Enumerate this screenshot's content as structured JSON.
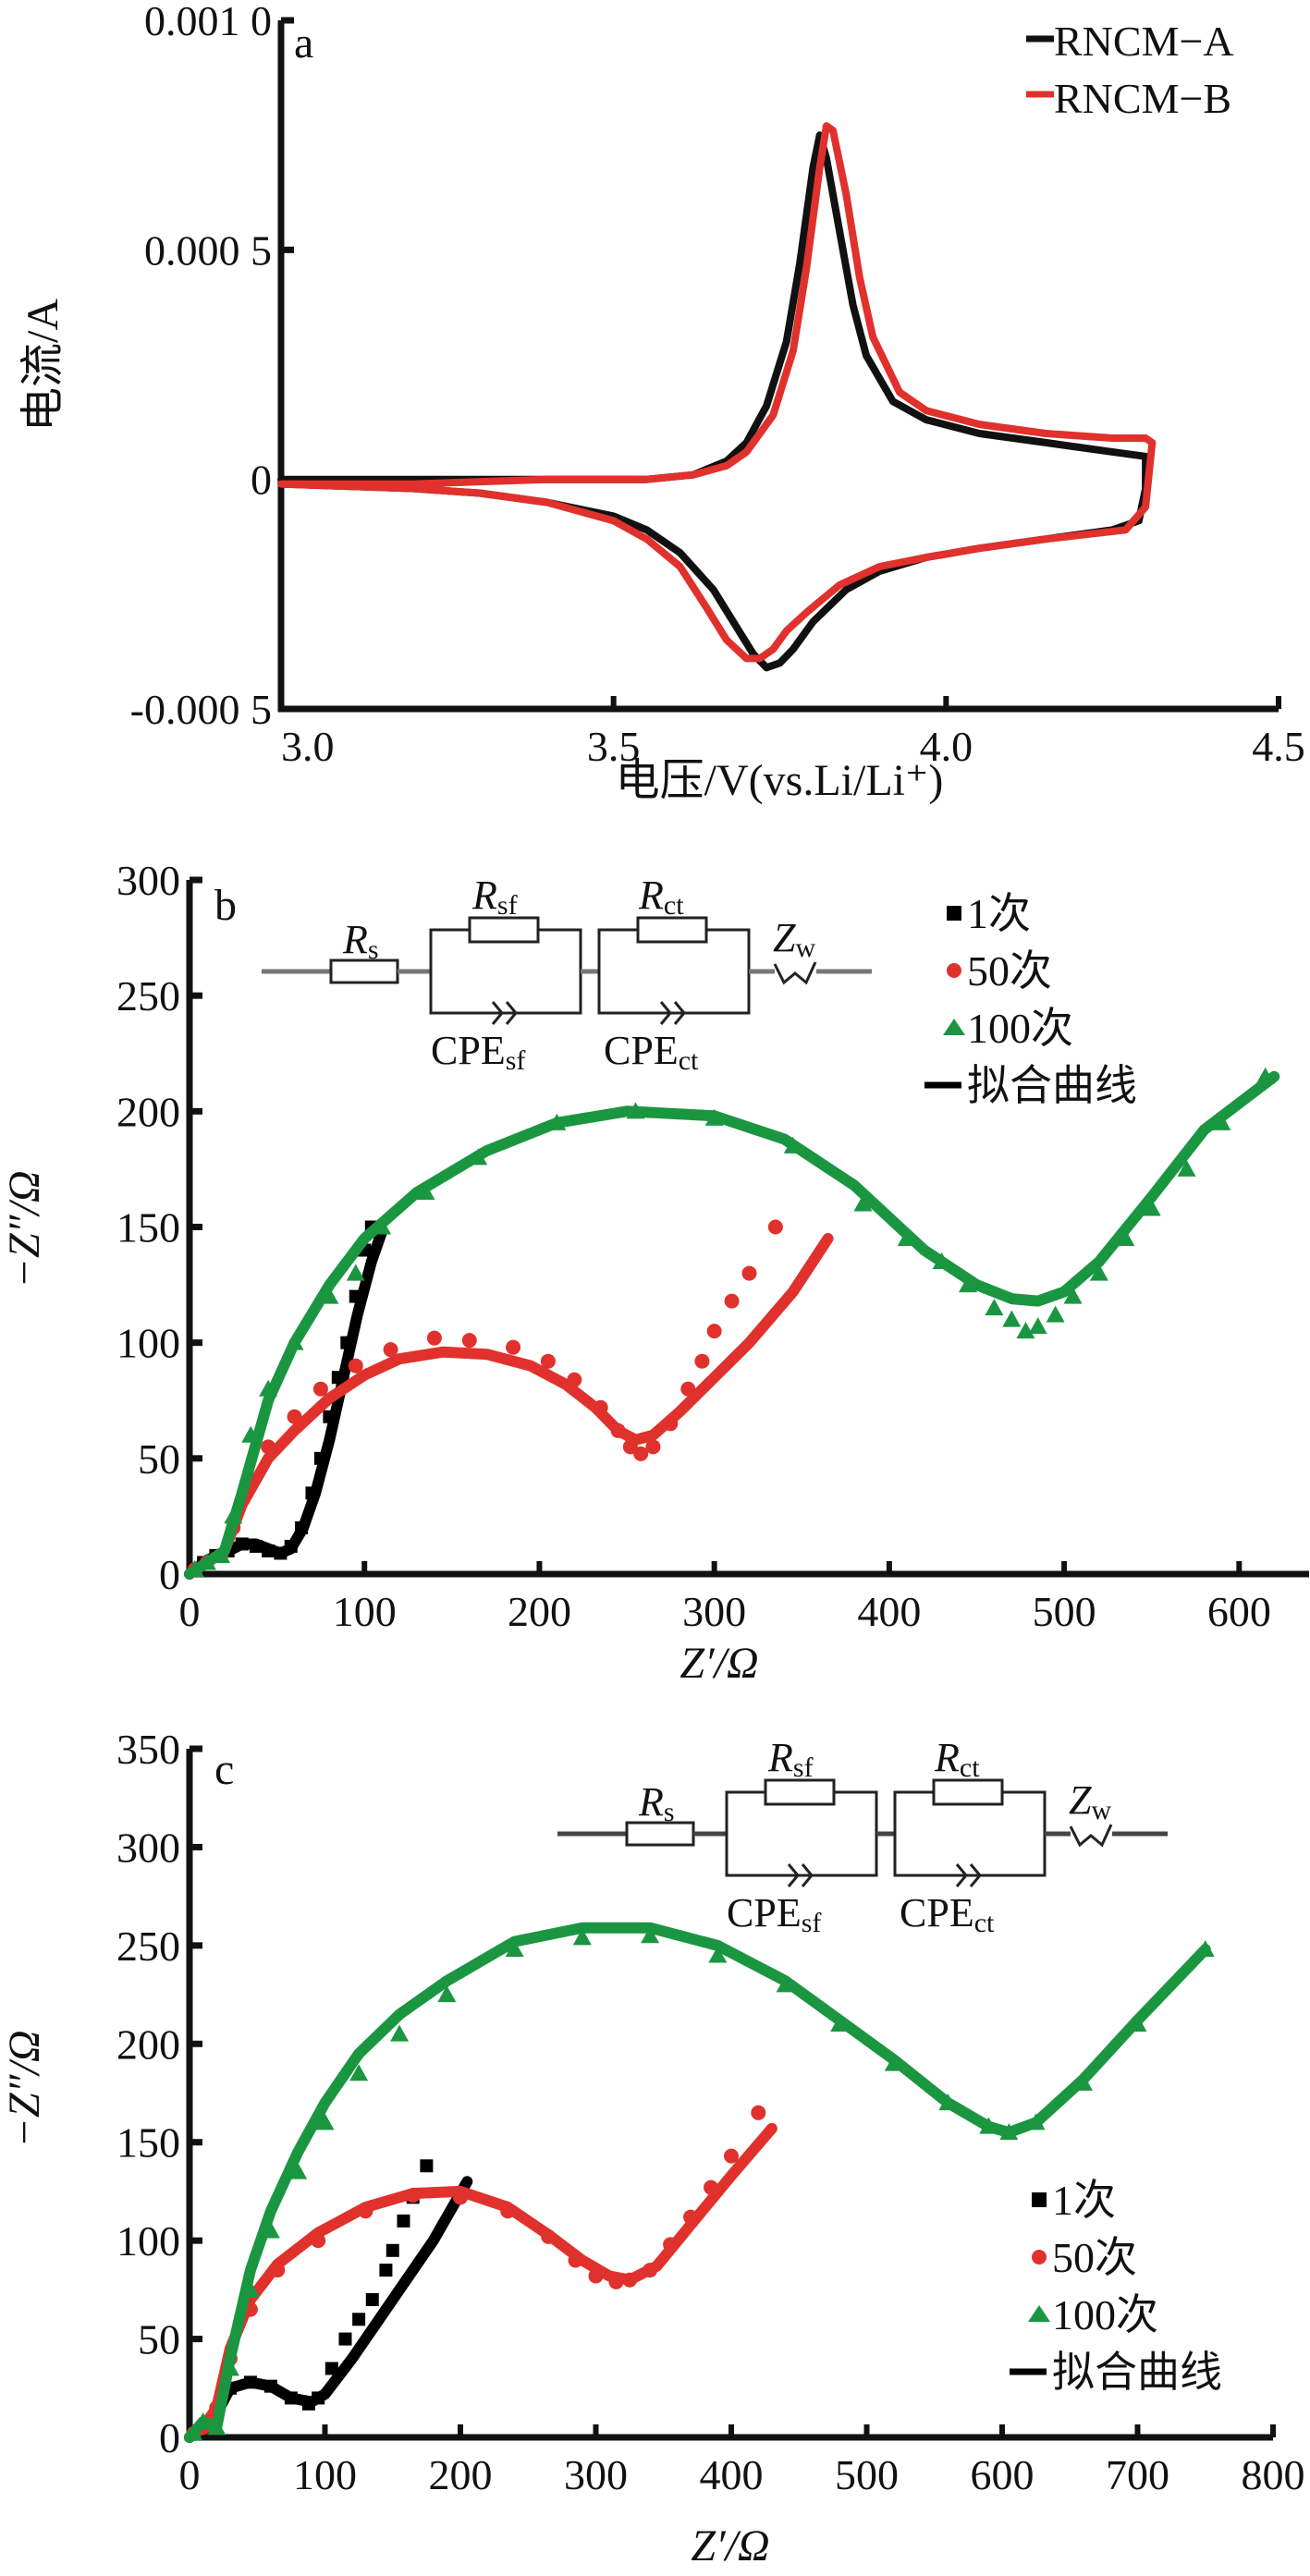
{
  "chart_data": [
    {
      "id": "a",
      "type": "line",
      "panel_label": "a",
      "xlabel": "电压/V(vs.Li/Li⁺)",
      "ylabel": "电流/A",
      "xlim": [
        3.0,
        4.5
      ],
      "ylim": [
        -0.0005,
        0.001
      ],
      "xticks": [
        3.0,
        3.5,
        4.0,
        4.5
      ],
      "xtick_labels": [
        "3.0",
        "3.5",
        "4.0",
        "4.5"
      ],
      "yticks": [
        -0.0005,
        0,
        0.0005,
        0.001
      ],
      "ytick_labels": [
        "-0.000 5",
        "0",
        "0.000 5",
        "0.001 0"
      ],
      "legend_position": "top-right",
      "series": [
        {
          "name": "RNCM−A",
          "color": "#111111",
          "x": [
            3.0,
            3.2,
            3.4,
            3.55,
            3.62,
            3.67,
            3.7,
            3.73,
            3.76,
            3.78,
            3.8,
            3.81,
            3.82,
            3.84,
            3.86,
            3.88,
            3.92,
            3.97,
            4.05,
            4.15,
            4.25,
            4.3,
            4.3,
            4.29,
            4.25,
            4.15,
            4.05,
            3.97,
            3.9,
            3.85,
            3.8,
            3.77,
            3.75,
            3.73,
            3.71,
            3.68,
            3.65,
            3.6,
            3.55,
            3.5,
            3.4,
            3.3,
            3.2,
            3.0
          ],
          "y": [
            0.0,
            0.0,
            0.0,
            0.0,
            1e-05,
            4e-05,
            8e-05,
            0.00016,
            0.0003,
            0.00047,
            0.00068,
            0.00075,
            0.0007,
            0.00054,
            0.00038,
            0.00027,
            0.00017,
            0.00013,
            0.0001,
            8e-05,
            6e-05,
            5e-05,
            -2e-05,
            -9e-05,
            -0.00011,
            -0.00013,
            -0.00015,
            -0.00017,
            -0.0002,
            -0.00024,
            -0.00031,
            -0.00037,
            -0.0004,
            -0.00041,
            -0.00038,
            -0.00031,
            -0.00024,
            -0.00016,
            -0.00011,
            -8e-05,
            -5e-05,
            -3e-05,
            -2e-05,
            -1e-05
          ]
        },
        {
          "name": "RNCM−B",
          "color": "#e0312c",
          "x": [
            3.0,
            3.2,
            3.4,
            3.55,
            3.62,
            3.67,
            3.7,
            3.74,
            3.77,
            3.79,
            3.81,
            3.82,
            3.83,
            3.85,
            3.87,
            3.89,
            3.93,
            3.97,
            4.05,
            4.15,
            4.25,
            4.3,
            4.31,
            4.3,
            4.27,
            4.15,
            4.05,
            3.97,
            3.9,
            3.84,
            3.79,
            3.76,
            3.74,
            3.72,
            3.7,
            3.67,
            3.64,
            3.6,
            3.55,
            3.5,
            3.4,
            3.3,
            3.2,
            3.0
          ],
          "y": [
            -1e-05,
            -1e-05,
            0.0,
            0.0,
            1e-05,
            3e-05,
            6e-05,
            0.00014,
            0.00028,
            0.00046,
            0.00068,
            0.00077,
            0.00076,
            0.00062,
            0.00044,
            0.00031,
            0.00019,
            0.00015,
            0.00012,
            0.0001,
            9e-05,
            9e-05,
            8e-05,
            -6e-05,
            -0.00011,
            -0.00013,
            -0.00015,
            -0.00017,
            -0.00019,
            -0.00023,
            -0.00029,
            -0.00033,
            -0.00037,
            -0.00039,
            -0.00039,
            -0.00035,
            -0.00028,
            -0.00019,
            -0.00013,
            -9e-05,
            -5e-05,
            -3e-05,
            -2e-05,
            -1e-05
          ]
        }
      ]
    },
    {
      "id": "b",
      "type": "scatter",
      "panel_label": "b",
      "xlabel": "Z′/Ω",
      "ylabel": "−Z″/Ω",
      "xlim": [
        0,
        640
      ],
      "ylim": [
        0,
        300
      ],
      "xticks": [
        0,
        100,
        200,
        300,
        400,
        500,
        600
      ],
      "xtick_labels": [
        "0",
        "100",
        "200",
        "300",
        "400",
        "500",
        "600"
      ],
      "yticks": [
        0,
        50,
        100,
        150,
        200,
        250,
        300
      ],
      "ytick_labels": [
        "0",
        "50",
        "100",
        "150",
        "200",
        "250",
        "300"
      ],
      "legend_position": "top-right",
      "legend": [
        {
          "label": "1次",
          "marker": "square",
          "color": "#000000"
        },
        {
          "label": "50次",
          "marker": "circle",
          "color": "#e0312c"
        },
        {
          "label": "100次",
          "marker": "triangle",
          "color": "#1a9641"
        },
        {
          "label": "拟合曲线",
          "marker": "line",
          "color": "#000000"
        }
      ],
      "circuit": {
        "labels": [
          "R",
          "s",
          "R",
          "sf",
          "R",
          "ct",
          "Z",
          "w",
          "CPE",
          "sf",
          "CPE",
          "ct"
        ]
      },
      "series": [
        {
          "name": "1次",
          "color": "#000000",
          "marker": "square",
          "points_x": [
            2,
            8,
            15,
            22,
            30,
            38,
            45,
            52,
            58,
            64,
            70,
            75,
            80,
            85,
            90,
            95,
            100,
            104
          ],
          "points_y": [
            2,
            5,
            8,
            10,
            13,
            12,
            10,
            9,
            12,
            20,
            35,
            50,
            68,
            85,
            100,
            120,
            140,
            150
          ],
          "fit_x": [
            0,
            10,
            20,
            30,
            38,
            45,
            52,
            58,
            65,
            72,
            80,
            88,
            96,
            104,
            110
          ],
          "fit_y": [
            0,
            6,
            9,
            13,
            13,
            11,
            9,
            11,
            20,
            35,
            58,
            85,
            112,
            135,
            148
          ]
        },
        {
          "name": "50次",
          "color": "#e0312c",
          "marker": "circle",
          "points_x": [
            3,
            10,
            18,
            25,
            35,
            45,
            60,
            75,
            95,
            115,
            140,
            160,
            185,
            205,
            220,
            235,
            245,
            252,
            258,
            265,
            275,
            285,
            293,
            300,
            310,
            320,
            335
          ],
          "points_y": [
            2,
            5,
            8,
            20,
            40,
            55,
            68,
            80,
            90,
            97,
            102,
            101,
            98,
            92,
            84,
            72,
            62,
            55,
            52,
            55,
            65,
            80,
            92,
            105,
            118,
            130,
            150
          ],
          "fit_x": [
            0,
            10,
            20,
            30,
            45,
            60,
            80,
            100,
            120,
            145,
            170,
            195,
            215,
            232,
            245,
            255,
            265,
            280,
            300,
            320,
            345,
            365
          ],
          "fit_y": [
            0,
            5,
            10,
            30,
            50,
            62,
            76,
            86,
            93,
            96,
            95,
            90,
            82,
            72,
            62,
            58,
            60,
            70,
            85,
            100,
            122,
            145
          ]
        },
        {
          "name": "100次",
          "color": "#1a9641",
          "marker": "triangle",
          "points_x": [
            3,
            10,
            18,
            25,
            35,
            45,
            60,
            80,
            95,
            110,
            135,
            165,
            210,
            255,
            300,
            345,
            385,
            410,
            430,
            445,
            460,
            470,
            478,
            485,
            495,
            505,
            520,
            535,
            550,
            570,
            590,
            615
          ],
          "points_y": [
            2,
            5,
            8,
            25,
            60,
            80,
            100,
            120,
            130,
            150,
            165,
            180,
            195,
            200,
            197,
            185,
            160,
            145,
            135,
            125,
            115,
            110,
            105,
            107,
            112,
            120,
            130,
            145,
            158,
            175,
            195,
            215
          ],
          "fit_x": [
            0,
            10,
            20,
            30,
            45,
            60,
            80,
            100,
            130,
            170,
            210,
            250,
            300,
            340,
            380,
            420,
            450,
            470,
            485,
            500,
            520,
            550,
            580,
            620
          ],
          "fit_y": [
            0,
            5,
            10,
            35,
            75,
            100,
            125,
            145,
            165,
            183,
            195,
            200,
            198,
            188,
            168,
            140,
            125,
            119,
            118,
            122,
            135,
            163,
            192,
            215
          ]
        }
      ]
    },
    {
      "id": "c",
      "type": "scatter",
      "panel_label": "c",
      "xlabel": "Z′/Ω",
      "ylabel": "−Z″/Ω",
      "xlim": [
        0,
        800
      ],
      "ylim": [
        0,
        350
      ],
      "xticks": [
        0,
        100,
        200,
        300,
        400,
        500,
        600,
        700,
        800
      ],
      "xtick_labels": [
        "0",
        "100",
        "200",
        "300",
        "400",
        "500",
        "600",
        "700",
        "800"
      ],
      "yticks": [
        0,
        50,
        100,
        150,
        200,
        250,
        300,
        350
      ],
      "ytick_labels": [
        "0",
        "50",
        "100",
        "150",
        "200",
        "250",
        "300",
        "350"
      ],
      "legend_position": "bottom-right",
      "legend": [
        {
          "label": "1次",
          "marker": "square",
          "color": "#000000"
        },
        {
          "label": "50次",
          "marker": "circle",
          "color": "#e0312c"
        },
        {
          "label": "100次",
          "marker": "triangle",
          "color": "#1a9641"
        },
        {
          "label": "拟合曲线",
          "marker": "line",
          "color": "#000000"
        }
      ],
      "circuit": {
        "labels": [
          "R",
          "s",
          "R",
          "sf",
          "R",
          "ct",
          "Z",
          "w",
          "CPE",
          "sf",
          "CPE",
          "ct"
        ]
      },
      "series": [
        {
          "name": "1次",
          "color": "#000000",
          "marker": "square",
          "points_x": [
            3,
            10,
            20,
            30,
            45,
            60,
            75,
            88,
            95,
            105,
            115,
            125,
            135,
            145,
            150,
            158,
            165,
            175
          ],
          "points_y": [
            2,
            5,
            12,
            25,
            28,
            26,
            20,
            17,
            20,
            35,
            50,
            60,
            70,
            85,
            95,
            110,
            122,
            138
          ],
          "fit_x": [
            0,
            10,
            20,
            30,
            45,
            60,
            75,
            90,
            100,
            120,
            140,
            160,
            180,
            205
          ],
          "fit_y": [
            0,
            5,
            12,
            25,
            28,
            26,
            20,
            18,
            22,
            40,
            60,
            80,
            100,
            130
          ]
        },
        {
          "name": "50次",
          "color": "#e0312c",
          "marker": "circle",
          "points_x": [
            3,
            10,
            20,
            30,
            45,
            65,
            95,
            130,
            165,
            200,
            235,
            265,
            285,
            300,
            315,
            325,
            340,
            355,
            370,
            385,
            400,
            420
          ],
          "points_y": [
            2,
            5,
            15,
            40,
            65,
            85,
            100,
            115,
            123,
            122,
            115,
            102,
            90,
            82,
            79,
            80,
            85,
            98,
            112,
            127,
            143,
            165
          ],
          "fit_x": [
            0,
            10,
            20,
            30,
            45,
            65,
            95,
            130,
            165,
            200,
            235,
            265,
            290,
            310,
            325,
            345,
            370,
            400,
            430
          ],
          "fit_y": [
            0,
            5,
            15,
            45,
            70,
            88,
            104,
            117,
            124,
            125,
            117,
            103,
            90,
            82,
            80,
            87,
            108,
            133,
            157
          ]
        },
        {
          "name": "100次",
          "color": "#1a9641",
          "marker": "triangle",
          "points_x": [
            3,
            10,
            20,
            30,
            45,
            60,
            80,
            100,
            125,
            155,
            190,
            240,
            290,
            340,
            390,
            440,
            480,
            520,
            560,
            590,
            605,
            625,
            660,
            700,
            750
          ],
          "points_y": [
            2,
            8,
            5,
            35,
            75,
            105,
            135,
            160,
            185,
            205,
            225,
            248,
            254,
            255,
            245,
            230,
            210,
            190,
            170,
            158,
            155,
            160,
            180,
            210,
            248
          ],
          "fit_x": [
            0,
            10,
            20,
            30,
            45,
            60,
            80,
            100,
            125,
            155,
            190,
            240,
            290,
            340,
            390,
            440,
            480,
            520,
            560,
            590,
            605,
            625,
            660,
            700,
            750
          ],
          "fit_y": [
            0,
            8,
            5,
            40,
            85,
            115,
            145,
            170,
            195,
            215,
            232,
            252,
            259,
            259,
            250,
            232,
            212,
            192,
            170,
            158,
            155,
            160,
            182,
            212,
            248
          ]
        }
      ]
    }
  ]
}
